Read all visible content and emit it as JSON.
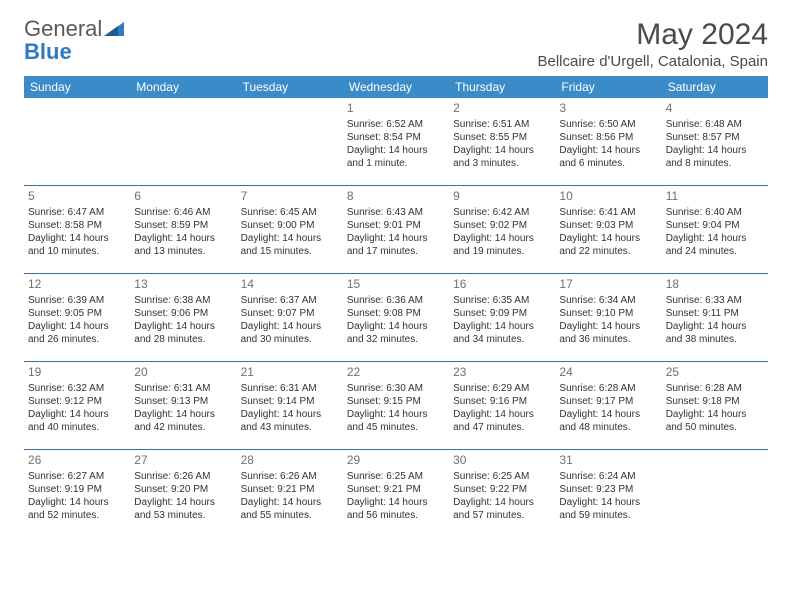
{
  "brand": {
    "general": "General",
    "blue": "Blue"
  },
  "title": "May 2024",
  "location": "Bellcaire d'Urgell, Catalonia, Spain",
  "colors": {
    "header_bg": "#3b8bc8",
    "header_text": "#ffffff",
    "row_border": "#3b6e9c",
    "daynum": "#707070",
    "body_text": "#333333",
    "logo_gray": "#5a5a5a",
    "logo_blue": "#2f7bbf"
  },
  "weekdays": [
    "Sunday",
    "Monday",
    "Tuesday",
    "Wednesday",
    "Thursday",
    "Friday",
    "Saturday"
  ],
  "weeks": [
    [
      null,
      null,
      null,
      {
        "n": "1",
        "sr": "6:52 AM",
        "ss": "8:54 PM",
        "dl": "14 hours and 1 minute."
      },
      {
        "n": "2",
        "sr": "6:51 AM",
        "ss": "8:55 PM",
        "dl": "14 hours and 3 minutes."
      },
      {
        "n": "3",
        "sr": "6:50 AM",
        "ss": "8:56 PM",
        "dl": "14 hours and 6 minutes."
      },
      {
        "n": "4",
        "sr": "6:48 AM",
        "ss": "8:57 PM",
        "dl": "14 hours and 8 minutes."
      }
    ],
    [
      {
        "n": "5",
        "sr": "6:47 AM",
        "ss": "8:58 PM",
        "dl": "14 hours and 10 minutes."
      },
      {
        "n": "6",
        "sr": "6:46 AM",
        "ss": "8:59 PM",
        "dl": "14 hours and 13 minutes."
      },
      {
        "n": "7",
        "sr": "6:45 AM",
        "ss": "9:00 PM",
        "dl": "14 hours and 15 minutes."
      },
      {
        "n": "8",
        "sr": "6:43 AM",
        "ss": "9:01 PM",
        "dl": "14 hours and 17 minutes."
      },
      {
        "n": "9",
        "sr": "6:42 AM",
        "ss": "9:02 PM",
        "dl": "14 hours and 19 minutes."
      },
      {
        "n": "10",
        "sr": "6:41 AM",
        "ss": "9:03 PM",
        "dl": "14 hours and 22 minutes."
      },
      {
        "n": "11",
        "sr": "6:40 AM",
        "ss": "9:04 PM",
        "dl": "14 hours and 24 minutes."
      }
    ],
    [
      {
        "n": "12",
        "sr": "6:39 AM",
        "ss": "9:05 PM",
        "dl": "14 hours and 26 minutes."
      },
      {
        "n": "13",
        "sr": "6:38 AM",
        "ss": "9:06 PM",
        "dl": "14 hours and 28 minutes."
      },
      {
        "n": "14",
        "sr": "6:37 AM",
        "ss": "9:07 PM",
        "dl": "14 hours and 30 minutes."
      },
      {
        "n": "15",
        "sr": "6:36 AM",
        "ss": "9:08 PM",
        "dl": "14 hours and 32 minutes."
      },
      {
        "n": "16",
        "sr": "6:35 AM",
        "ss": "9:09 PM",
        "dl": "14 hours and 34 minutes."
      },
      {
        "n": "17",
        "sr": "6:34 AM",
        "ss": "9:10 PM",
        "dl": "14 hours and 36 minutes."
      },
      {
        "n": "18",
        "sr": "6:33 AM",
        "ss": "9:11 PM",
        "dl": "14 hours and 38 minutes."
      }
    ],
    [
      {
        "n": "19",
        "sr": "6:32 AM",
        "ss": "9:12 PM",
        "dl": "14 hours and 40 minutes."
      },
      {
        "n": "20",
        "sr": "6:31 AM",
        "ss": "9:13 PM",
        "dl": "14 hours and 42 minutes."
      },
      {
        "n": "21",
        "sr": "6:31 AM",
        "ss": "9:14 PM",
        "dl": "14 hours and 43 minutes."
      },
      {
        "n": "22",
        "sr": "6:30 AM",
        "ss": "9:15 PM",
        "dl": "14 hours and 45 minutes."
      },
      {
        "n": "23",
        "sr": "6:29 AM",
        "ss": "9:16 PM",
        "dl": "14 hours and 47 minutes."
      },
      {
        "n": "24",
        "sr": "6:28 AM",
        "ss": "9:17 PM",
        "dl": "14 hours and 48 minutes."
      },
      {
        "n": "25",
        "sr": "6:28 AM",
        "ss": "9:18 PM",
        "dl": "14 hours and 50 minutes."
      }
    ],
    [
      {
        "n": "26",
        "sr": "6:27 AM",
        "ss": "9:19 PM",
        "dl": "14 hours and 52 minutes."
      },
      {
        "n": "27",
        "sr": "6:26 AM",
        "ss": "9:20 PM",
        "dl": "14 hours and 53 minutes."
      },
      {
        "n": "28",
        "sr": "6:26 AM",
        "ss": "9:21 PM",
        "dl": "14 hours and 55 minutes."
      },
      {
        "n": "29",
        "sr": "6:25 AM",
        "ss": "9:21 PM",
        "dl": "14 hours and 56 minutes."
      },
      {
        "n": "30",
        "sr": "6:25 AM",
        "ss": "9:22 PM",
        "dl": "14 hours and 57 minutes."
      },
      {
        "n": "31",
        "sr": "6:24 AM",
        "ss": "9:23 PM",
        "dl": "14 hours and 59 minutes."
      },
      null
    ]
  ],
  "labels": {
    "sunrise": "Sunrise: ",
    "sunset": "Sunset: ",
    "daylight": "Daylight: "
  }
}
